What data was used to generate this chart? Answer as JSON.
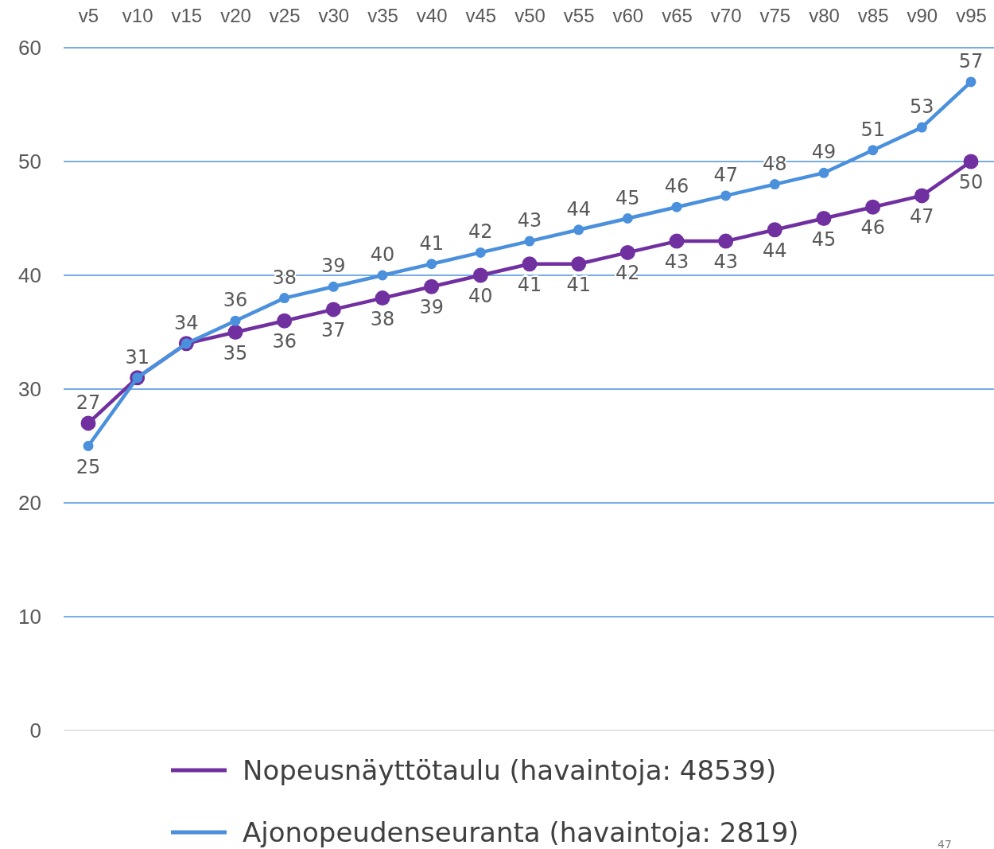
{
  "chart_data": {
    "type": "line",
    "categories": [
      "v5",
      "v10",
      "v15",
      "v20",
      "v25",
      "v30",
      "v35",
      "v40",
      "v45",
      "v50",
      "v55",
      "v60",
      "v65",
      "v70",
      "v75",
      "v80",
      "v85",
      "v90",
      "v95"
    ],
    "series": [
      {
        "name": "Nopeusnäyttötaulu (havaintoja: 48539)",
        "color": "#7030a0",
        "values": [
          27,
          31,
          34,
          35,
          36,
          37,
          38,
          39,
          40,
          41,
          41,
          42,
          43,
          43,
          44,
          45,
          46,
          47,
          50
        ],
        "value_labels": [
          "27",
          null,
          null,
          "35",
          "36",
          "37",
          "38",
          "39",
          "40",
          "41",
          "41",
          "42",
          "43",
          "43",
          "44",
          "45",
          "46",
          "47",
          "50"
        ]
      },
      {
        "name": "Ajonopeudenseuranta (havaintoja: 2819)",
        "color": "#4a90dc",
        "values": [
          25,
          31,
          34,
          36,
          38,
          39,
          40,
          41,
          42,
          43,
          44,
          45,
          46,
          47,
          48,
          49,
          51,
          53,
          57
        ],
        "value_labels": [
          "25",
          "31",
          "34",
          "36",
          "38",
          "39",
          "40",
          "41",
          "42",
          "43",
          "44",
          "45",
          "46",
          "47",
          "48",
          "49",
          "51",
          "53",
          "57"
        ]
      }
    ],
    "ylim": [
      0,
      60
    ],
    "yticks": [
      0,
      10,
      20,
      30,
      40,
      50,
      60
    ],
    "grid": "y",
    "legend": "bottom",
    "marker": "circle",
    "line_style": "solid",
    "annotations": [
      "47"
    ]
  }
}
